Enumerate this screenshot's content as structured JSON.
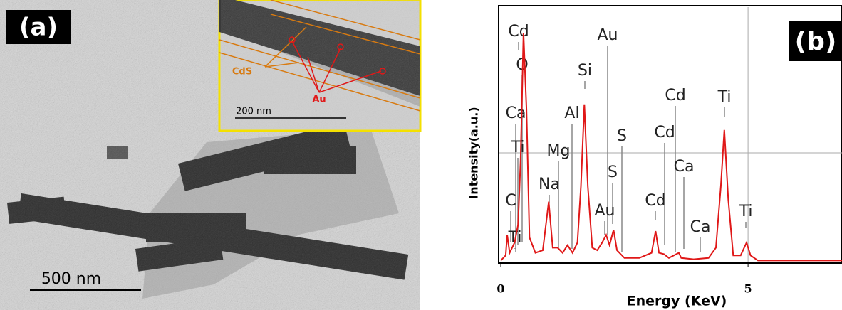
{
  "panel_a": {
    "label": "(a)",
    "scale_bar": "500 nm",
    "inset": {
      "cds_label": "CdS",
      "au_label": "Au",
      "scale_bar": "200 nm"
    }
  },
  "chart_data": {
    "type": "line",
    "panel_label": "(b)",
    "x_label": "Energy (KeV)",
    "y_label": "Intensity(a.u.)",
    "xlim": [
      0,
      6.9
    ],
    "ylim": [
      0,
      100
    ],
    "xticks": [
      0,
      5
    ],
    "grid": true,
    "series": [
      {
        "color": "#e01818",
        "x": [
          0,
          0.1,
          0.13,
          0.18,
          0.28,
          0.35,
          0.4,
          0.46,
          0.52,
          0.58,
          0.7,
          0.85,
          0.97,
          1.05,
          1.15,
          1.25,
          1.35,
          1.45,
          1.55,
          1.62,
          1.69,
          1.76,
          1.85,
          1.95,
          2.05,
          2.13,
          2.2,
          2.28,
          2.35,
          2.5,
          2.8,
          3.05,
          3.13,
          3.2,
          3.3,
          3.4,
          3.6,
          3.65,
          3.9,
          4.2,
          4.35,
          4.45,
          4.52,
          4.6,
          4.7,
          4.85,
          4.97,
          5.05,
          5.2,
          6.0,
          6.9
        ],
        "values": [
          1,
          3,
          11,
          4,
          8,
          15,
          40,
          90,
          60,
          10,
          4,
          5,
          24,
          6,
          6,
          4,
          7,
          4,
          8,
          30,
          62,
          30,
          6,
          5,
          8,
          11,
          7,
          13,
          5,
          2,
          2,
          4,
          12.5,
          4,
          3.5,
          2,
          4,
          2,
          1.5,
          2,
          6,
          30,
          52,
          25,
          3,
          3,
          8,
          3,
          1,
          1,
          1
        ]
      }
    ],
    "annotations": [
      "Cd",
      "O",
      "Ca",
      "Ti",
      "C",
      "Ti",
      "Na",
      "Mg",
      "Al",
      "Si",
      "Au",
      "S",
      "S",
      "Au",
      "Cd",
      "Cd",
      "Cd",
      "Ca",
      "Ca",
      "Ti",
      "Ti"
    ]
  }
}
